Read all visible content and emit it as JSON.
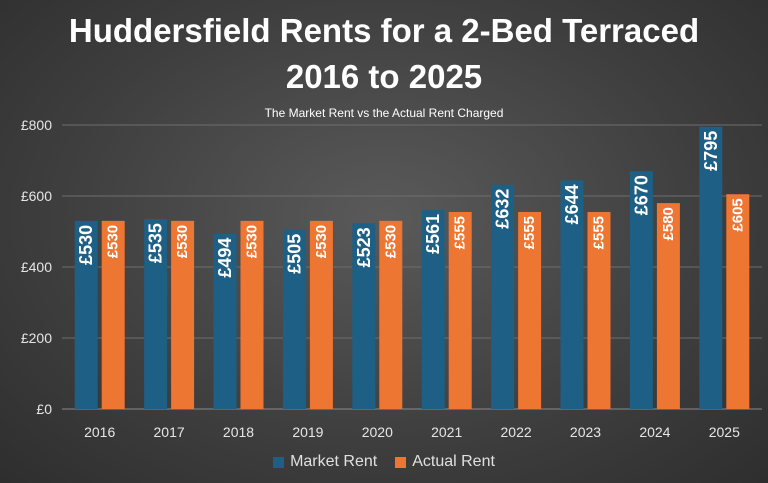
{
  "chart_data": {
    "type": "bar",
    "title_line1": "Huddersfield Rents for a 2-Bed Terraced",
    "title_line2": "2016 to 2025",
    "subtitle": "The Market Rent vs the Actual Rent Charged",
    "categories": [
      "2016",
      "2017",
      "2018",
      "2019",
      "2020",
      "2021",
      "2022",
      "2023",
      "2024",
      "2025"
    ],
    "series": [
      {
        "name": "Market Rent",
        "color": "#1d5f85",
        "values": [
          530,
          535,
          494,
          505,
          523,
          561,
          632,
          644,
          670,
          795
        ],
        "labels": [
          "£530",
          "£535",
          "£494",
          "£505",
          "£523",
          "£561",
          "£632",
          "£644",
          "£670",
          "£795"
        ]
      },
      {
        "name": "Actual Rent",
        "color": "#ee7633",
        "values": [
          530,
          530,
          530,
          530,
          530,
          555,
          555,
          555,
          580,
          605
        ],
        "labels": [
          "£530",
          "£530",
          "£530",
          "£530",
          "£530",
          "£555",
          "£555",
          "£555",
          "£580",
          "£605"
        ]
      }
    ],
    "yticks": [
      0,
      200,
      400,
      600,
      800
    ],
    "ytick_labels": [
      "£0",
      "£200",
      "£400",
      "£600",
      "£800"
    ],
    "ylim": [
      0,
      800
    ],
    "grid": true,
    "legend_position": "bottom"
  }
}
